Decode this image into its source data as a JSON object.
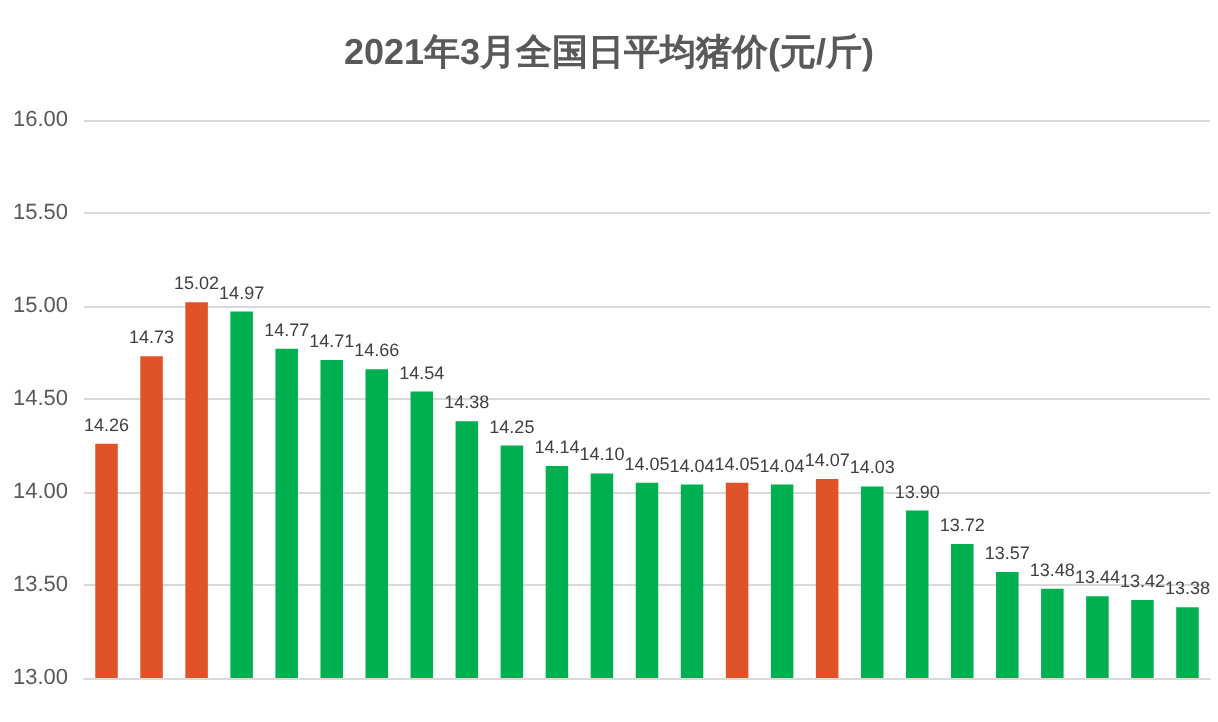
{
  "chart_data": {
    "type": "bar",
    "title": "2021年3月全国日平均猪价(元/斤)",
    "categories": [
      null,
      null,
      null,
      null,
      null,
      null,
      null,
      null,
      null,
      null,
      null,
      null,
      null,
      null,
      null,
      null,
      null,
      null,
      null,
      null,
      null,
      null,
      null,
      null,
      null
    ],
    "values": [
      14.26,
      14.73,
      15.02,
      14.97,
      14.77,
      14.71,
      14.66,
      14.54,
      14.38,
      14.25,
      14.14,
      14.1,
      14.05,
      14.04,
      14.05,
      14.04,
      14.07,
      14.03,
      13.9,
      13.72,
      13.57,
      13.48,
      13.44,
      13.42,
      13.38
    ],
    "colors": [
      "#e05328",
      "#e05328",
      "#e05328",
      "#00b050",
      "#00b050",
      "#00b050",
      "#00b050",
      "#00b050",
      "#00b050",
      "#00b050",
      "#00b050",
      "#00b050",
      "#00b050",
      "#00b050",
      "#e05328",
      "#00b050",
      "#e05328",
      "#00b050",
      "#00b050",
      "#00b050",
      "#00b050",
      "#00b050",
      "#00b050",
      "#00b050",
      "#00b050"
    ],
    "ylim": [
      13,
      16
    ],
    "yticks": [
      {
        "value": 13,
        "label": "13.00"
      },
      {
        "value": 13.5,
        "label": "13.50"
      },
      {
        "value": 14,
        "label": "14.00"
      },
      {
        "value": 14.5,
        "label": "14.50"
      },
      {
        "value": 15,
        "label": "15.00"
      },
      {
        "value": 15.5,
        "label": "15.50"
      },
      {
        "value": 16,
        "label": "16.00"
      }
    ],
    "value_labels": [
      "14.26",
      "14.73",
      "15.02",
      "14.97",
      "14.77",
      "14.71",
      "14.66",
      "14.54",
      "14.38",
      "14.25",
      "14.14",
      "14.10",
      "14.05",
      "14.04",
      "14.05",
      "14.04",
      "14.07",
      "14.03",
      "13.90",
      "13.72",
      "13.57",
      "13.48",
      "13.44",
      "13.42",
      "13.38"
    ],
    "grid": "y"
  }
}
